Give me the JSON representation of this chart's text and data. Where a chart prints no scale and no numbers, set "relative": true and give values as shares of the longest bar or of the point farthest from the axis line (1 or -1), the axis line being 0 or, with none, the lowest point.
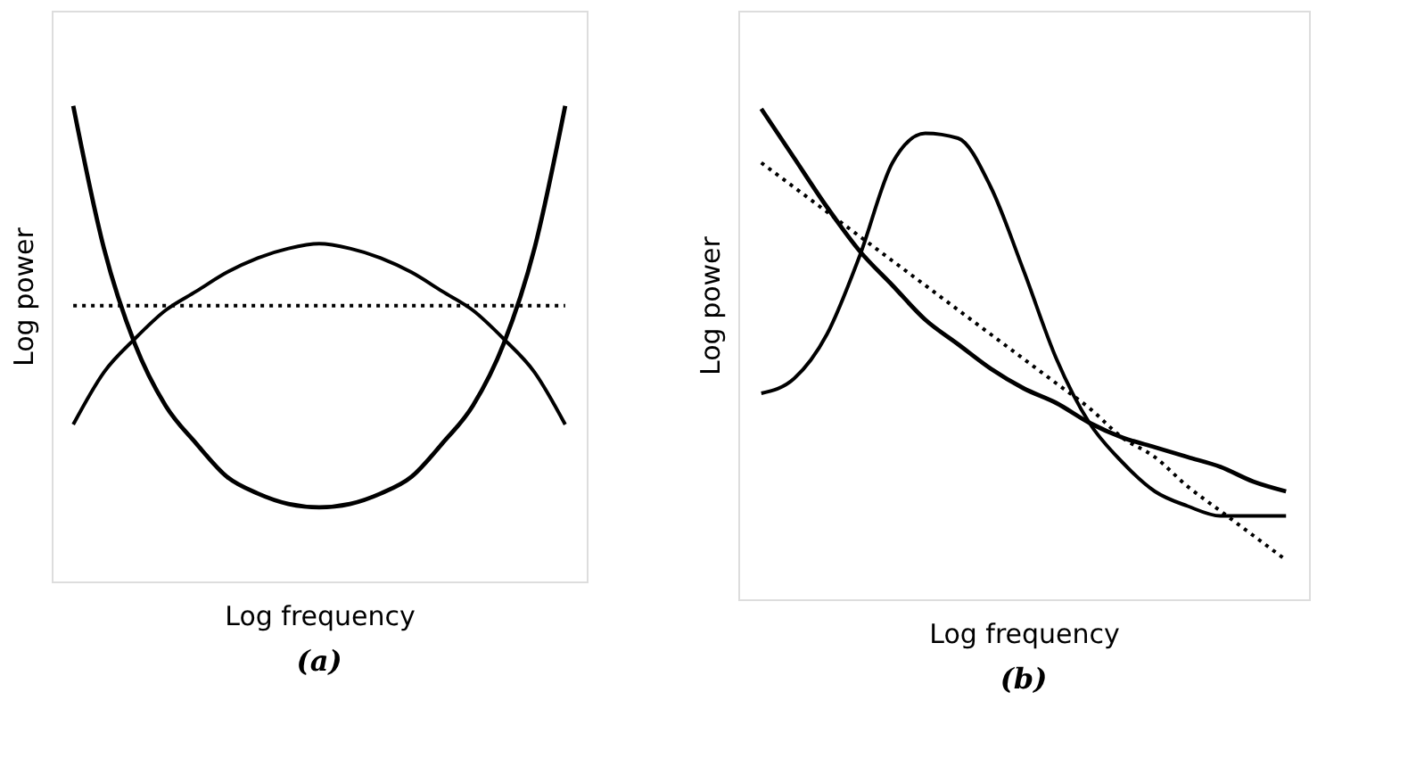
{
  "chart_data": [
    {
      "type": "line",
      "relative": true,
      "xlabel": "Log frequency",
      "ylabel": "Log power",
      "annotations": [
        "(a)"
      ],
      "marker": "none",
      "categories": [
        null,
        null,
        null,
        null,
        null,
        null,
        null,
        null,
        null,
        null,
        null,
        null,
        null,
        null,
        null,
        null,
        null
      ],
      "series": [
        {
          "color": "#000000",
          "line_style": "solid",
          "values": [
            1,
            0.7,
            0.5,
            0.37,
            0.29,
            0.22,
            0.185,
            0.163,
            0.156,
            0.163,
            0.185,
            0.22,
            0.29,
            0.37,
            0.5,
            0.7,
            1
          ]
        },
        {
          "color": "#000000",
          "line_style": "solid",
          "values": [
            0.33,
            0.44,
            0.51,
            0.57,
            0.61,
            0.65,
            0.68,
            0.7,
            0.71,
            0.7,
            0.68,
            0.65,
            0.61,
            0.57,
            0.51,
            0.44,
            0.33
          ]
        },
        {
          "color": "#000000",
          "line_style": "dotted",
          "values": [
            0.58,
            0.58,
            0.58,
            0.58,
            0.58,
            0.58,
            0.58,
            0.58,
            0.58,
            0.58,
            0.58,
            0.58,
            0.58,
            0.58,
            0.58,
            0.58,
            0.58
          ]
        }
      ]
    },
    {
      "type": "line",
      "relative": true,
      "xlabel": "Log frequency",
      "ylabel": "Log power",
      "annotations": [
        "(b)"
      ],
      "marker": "none",
      "categories": [
        null,
        null,
        null,
        null,
        null,
        null,
        null,
        null,
        null,
        null,
        null,
        null,
        null,
        null,
        null,
        null,
        null
      ],
      "series": [
        {
          "color": "#000000",
          "line_style": "solid",
          "values": [
            1,
            0.9,
            0.8,
            0.71,
            0.64,
            0.57,
            0.52,
            0.47,
            0.43,
            0.4,
            0.36,
            0.33,
            0.31,
            0.29,
            0.27,
            0.24,
            0.22
          ]
        },
        {
          "color": "#000000",
          "line_style": "solid",
          "values": [
            0.42,
            0.45,
            0.54,
            0.7,
            0.89,
            0.95,
            0.94,
            0.84,
            0.67,
            0.49,
            0.36,
            0.28,
            0.22,
            0.19,
            0.17,
            0.17,
            0.17
          ]
        },
        {
          "color": "#000000",
          "line_style": "dotted",
          "values": [
            0.89,
            0.84,
            0.79,
            0.74,
            0.69,
            0.64,
            0.59,
            0.54,
            0.49,
            0.44,
            0.39,
            0.33,
            0.29,
            0.23,
            0.18,
            0.13,
            0.08
          ]
        }
      ]
    }
  ]
}
